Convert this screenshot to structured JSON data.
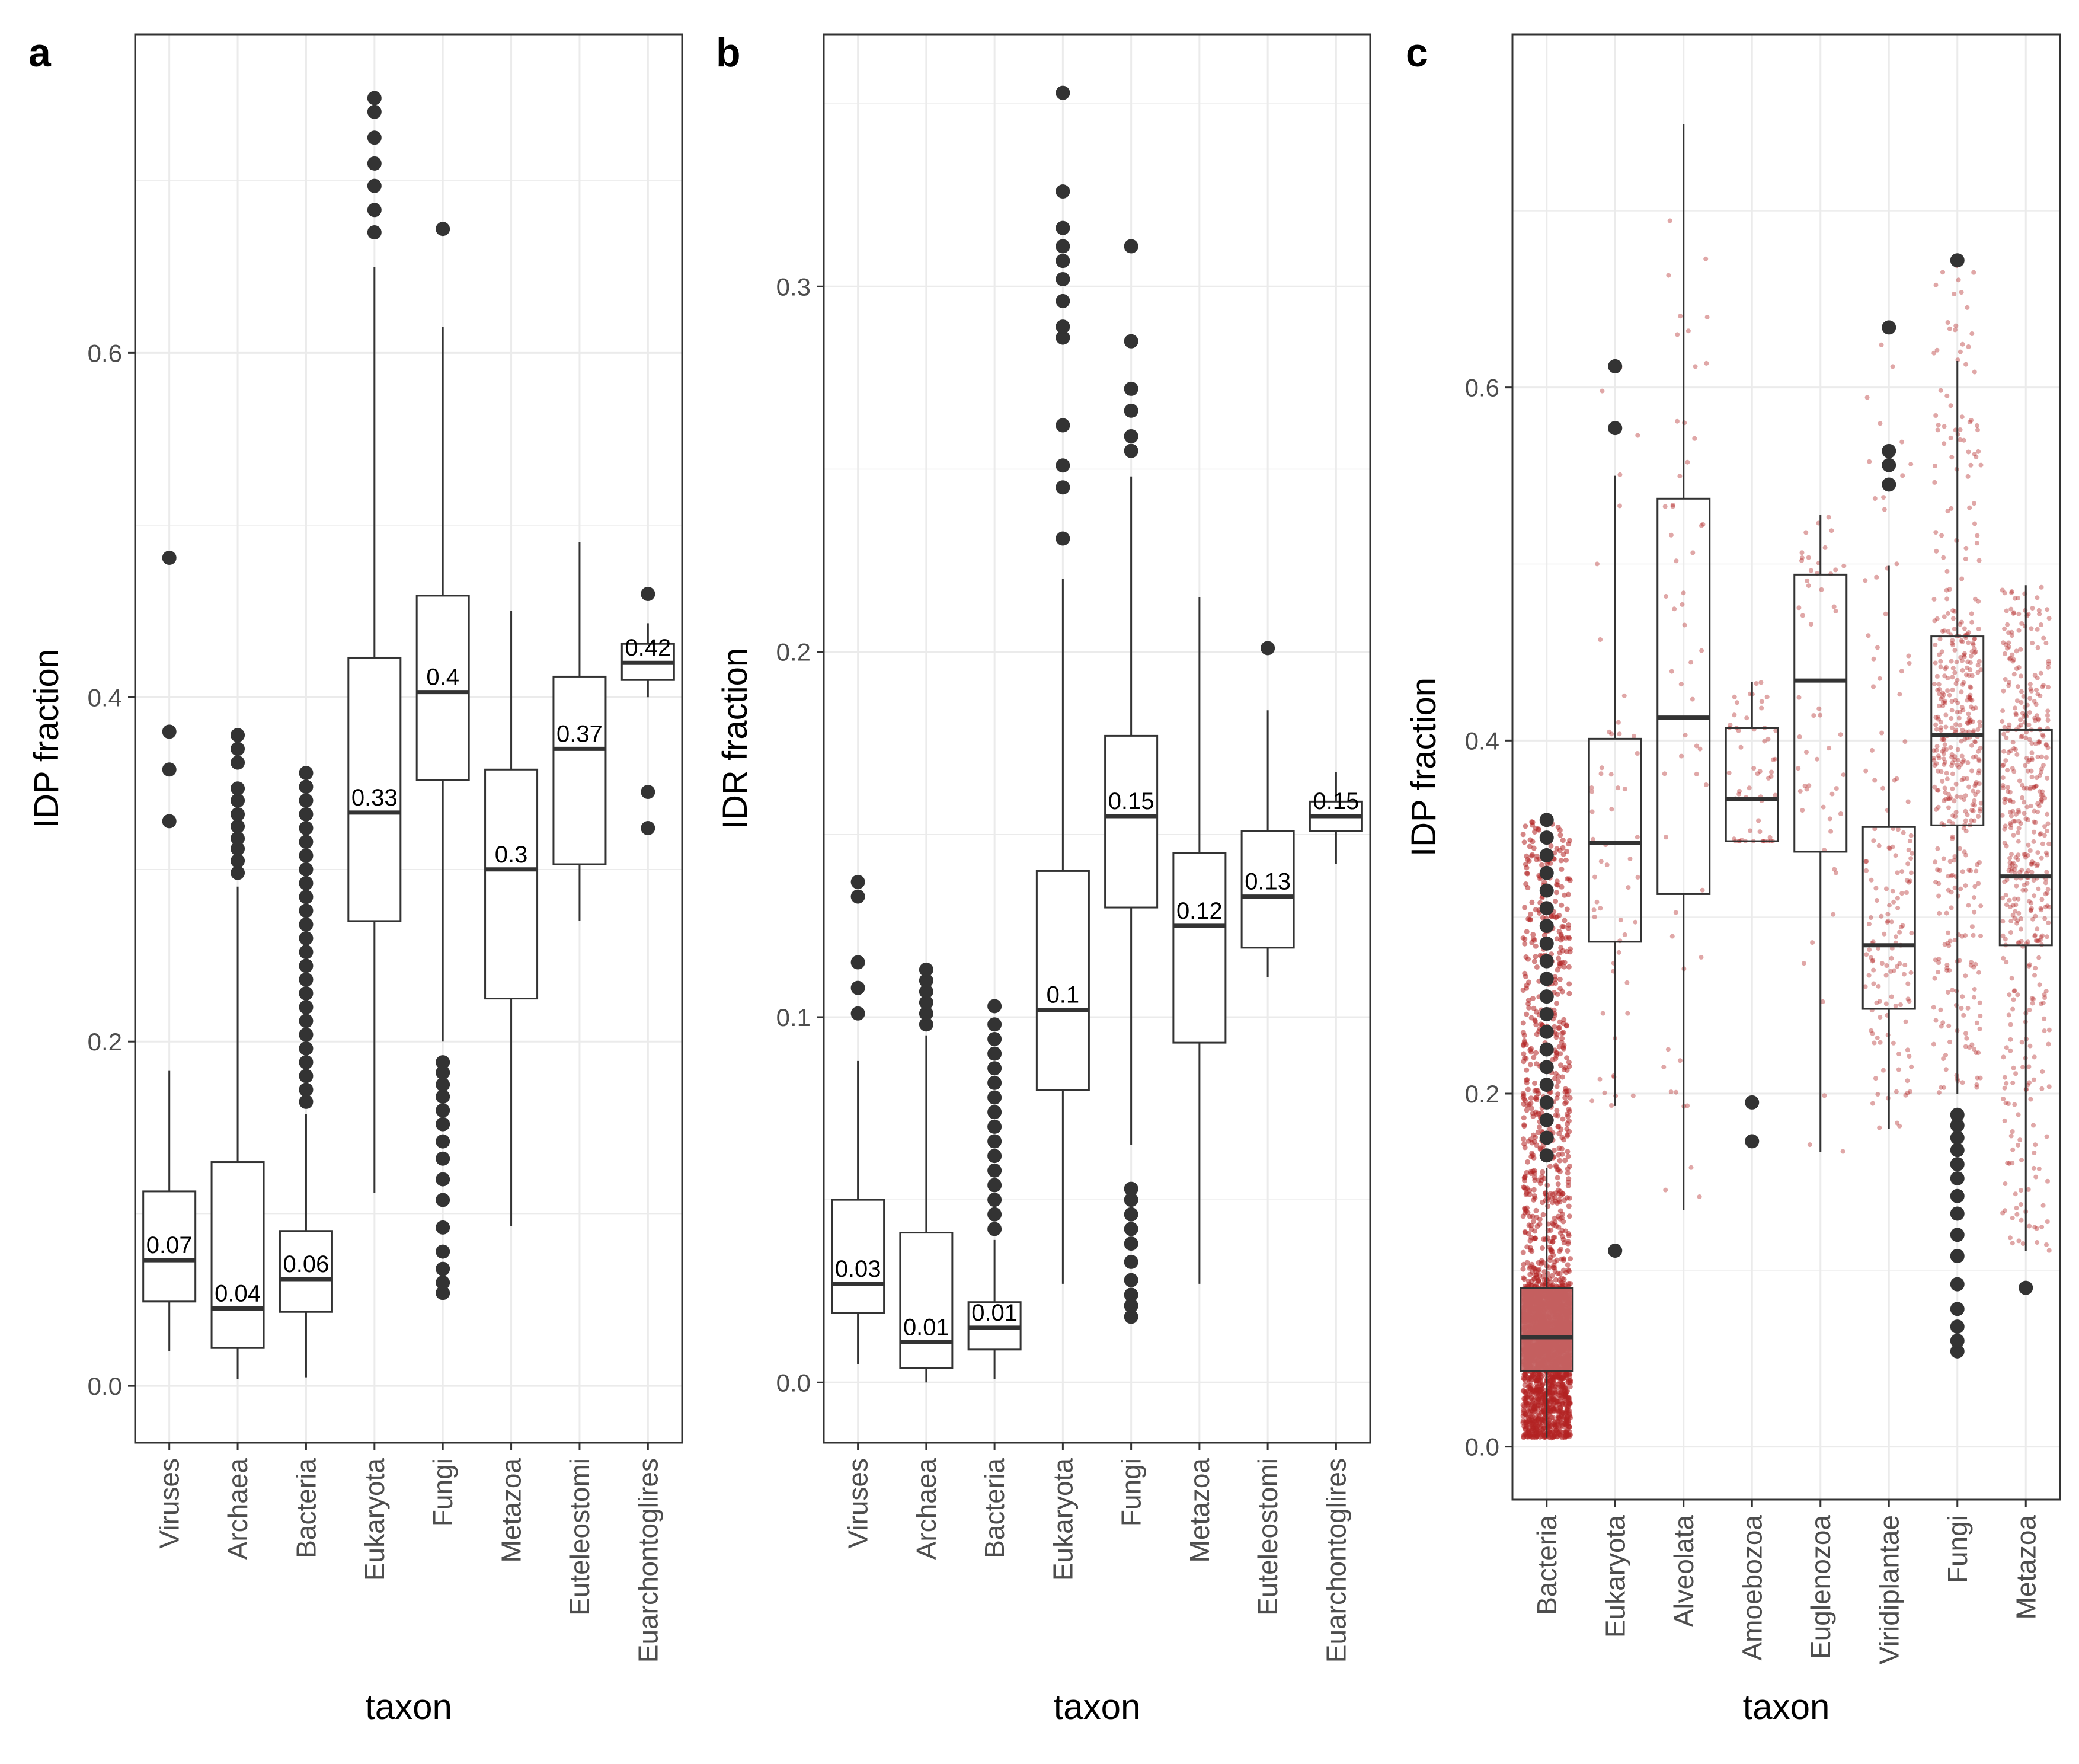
{
  "figure": {
    "panel_labels": [
      "a",
      "b",
      "c"
    ]
  },
  "colors": {
    "box_outline": "#333333",
    "outlier": "#333333",
    "grid": "#ebebeb",
    "panel_border": "#333333",
    "jitter": "#b22222",
    "bacteria_box_fill": "#c56666"
  },
  "chart_data": [
    {
      "type": "boxplot",
      "panel": "a",
      "xlabel": "taxon",
      "ylabel": "IDP fraction",
      "ylim": [
        -0.033,
        0.785
      ],
      "yticks": [
        0.0,
        0.2,
        0.4,
        0.6
      ],
      "ytick_labels": [
        "0.0",
        "0.2",
        "0.4",
        "0.6"
      ],
      "grid": true,
      "categories": [
        "Viruses",
        "Archaea",
        "Bacteria",
        "Eukaryota",
        "Fungi",
        "Metazoa",
        "Euteleostomi",
        "Euarchontoglires"
      ],
      "boxes": [
        {
          "q1": 0.049,
          "median": 0.073,
          "q3": 0.113,
          "lo": 0.02,
          "hi": 0.183,
          "label": "0.07",
          "outliers": [
            0.328,
            0.358,
            0.38,
            0.481
          ]
        },
        {
          "q1": 0.022,
          "median": 0.045,
          "q3": 0.13,
          "lo": 0.004,
          "hi": 0.29,
          "label": "0.04",
          "outliers": [
            0.298,
            0.305,
            0.312,
            0.318,
            0.325,
            0.332,
            0.34,
            0.347,
            0.362,
            0.37,
            0.378
          ]
        },
        {
          "q1": 0.043,
          "median": 0.062,
          "q3": 0.09,
          "lo": 0.005,
          "hi": 0.158,
          "label": "0.06",
          "outliers": [
            0.165,
            0.172,
            0.18,
            0.188,
            0.196,
            0.204,
            0.212,
            0.22,
            0.228,
            0.236,
            0.244,
            0.252,
            0.26,
            0.268,
            0.276,
            0.284,
            0.292,
            0.3,
            0.308,
            0.316,
            0.324,
            0.332,
            0.34,
            0.348,
            0.356
          ]
        },
        {
          "q1": 0.27,
          "median": 0.333,
          "q3": 0.423,
          "lo": 0.112,
          "hi": 0.65,
          "label": "0.33",
          "outliers": [
            0.67,
            0.683,
            0.697,
            0.71,
            0.725,
            0.74,
            0.748
          ]
        },
        {
          "q1": 0.352,
          "median": 0.403,
          "q3": 0.459,
          "lo": 0.2,
          "hi": 0.615,
          "label": "0.4",
          "outliers": [
            0.054,
            0.06,
            0.068,
            0.078,
            0.092,
            0.108,
            0.12,
            0.132,
            0.142,
            0.152,
            0.16,
            0.168,
            0.175,
            0.182,
            0.188,
            0.672
          ]
        },
        {
          "q1": 0.225,
          "median": 0.3,
          "q3": 0.358,
          "lo": 0.093,
          "hi": 0.45,
          "label": "0.3",
          "outliers": []
        },
        {
          "q1": 0.303,
          "median": 0.37,
          "q3": 0.412,
          "lo": 0.27,
          "hi": 0.49,
          "label": "0.37",
          "outliers": []
        },
        {
          "q1": 0.41,
          "median": 0.42,
          "q3": 0.431,
          "lo": 0.4,
          "hi": 0.443,
          "label": "0.42",
          "outliers": [
            0.324,
            0.345,
            0.46
          ]
        }
      ]
    },
    {
      "type": "boxplot",
      "panel": "b",
      "xlabel": "taxon",
      "ylabel": "IDR fraction",
      "ylim": [
        -0.0165,
        0.369
      ],
      "yticks": [
        0.0,
        0.1,
        0.2,
        0.3
      ],
      "ytick_labels": [
        "0.0",
        "0.1",
        "0.2",
        "0.3"
      ],
      "grid": true,
      "categories": [
        "Viruses",
        "Archaea",
        "Bacteria",
        "Eukaryota",
        "Fungi",
        "Metazoa",
        "Euteleostomi",
        "Euarchontoglires"
      ],
      "boxes": [
        {
          "q1": 0.019,
          "median": 0.027,
          "q3": 0.05,
          "lo": 0.005,
          "hi": 0.088,
          "label": "0.03",
          "outliers": [
            0.101,
            0.108,
            0.115,
            0.133,
            0.137
          ]
        },
        {
          "q1": 0.004,
          "median": 0.011,
          "q3": 0.041,
          "lo": 0.0,
          "hi": 0.095,
          "label": "0.01",
          "outliers": [
            0.098,
            0.101,
            0.104,
            0.107,
            0.11,
            0.113
          ]
        },
        {
          "q1": 0.009,
          "median": 0.015,
          "q3": 0.022,
          "lo": 0.001,
          "hi": 0.039,
          "label": "0.01",
          "outliers": [
            0.042,
            0.046,
            0.05,
            0.054,
            0.058,
            0.062,
            0.066,
            0.07,
            0.074,
            0.078,
            0.082,
            0.086,
            0.09,
            0.094,
            0.098,
            0.103
          ]
        },
        {
          "q1": 0.08,
          "median": 0.102,
          "q3": 0.14,
          "lo": 0.027,
          "hi": 0.22,
          "label": "0.1",
          "outliers": [
            0.231,
            0.245,
            0.251,
            0.262,
            0.286,
            0.289,
            0.296,
            0.302,
            0.307,
            0.311,
            0.316,
            0.326,
            0.353
          ]
        },
        {
          "q1": 0.13,
          "median": 0.155,
          "q3": 0.177,
          "lo": 0.065,
          "hi": 0.248,
          "label": "0.15",
          "outliers": [
            0.018,
            0.021,
            0.024,
            0.028,
            0.033,
            0.038,
            0.042,
            0.046,
            0.05,
            0.053,
            0.255,
            0.259,
            0.266,
            0.272,
            0.285,
            0.311
          ]
        },
        {
          "q1": 0.093,
          "median": 0.125,
          "q3": 0.145,
          "lo": 0.027,
          "hi": 0.215,
          "label": "0.12",
          "outliers": []
        },
        {
          "q1": 0.119,
          "median": 0.133,
          "q3": 0.151,
          "lo": 0.111,
          "hi": 0.184,
          "label": "0.13",
          "outliers": [
            0.201
          ]
        },
        {
          "q1": 0.151,
          "median": 0.155,
          "q3": 0.159,
          "lo": 0.142,
          "hi": 0.167,
          "label": "0.15",
          "outliers": []
        }
      ]
    },
    {
      "type": "boxplot",
      "panel": "c",
      "xlabel": "taxon",
      "ylabel": "IDP fraction",
      "ylim": [
        -0.03,
        0.8
      ],
      "yticks": [
        0.0,
        0.2,
        0.4,
        0.6
      ],
      "ytick_labels": [
        "0.0",
        "0.2",
        "0.4",
        "0.6"
      ],
      "grid": true,
      "jitter": true,
      "categories": [
        "Bacteria",
        "Eukaryota",
        "Alveolata",
        "Amoebozoa",
        "Euglenozoa",
        "Viridiplantae",
        "Fungi",
        "Metazoa"
      ],
      "boxes": [
        {
          "q1": 0.043,
          "median": 0.062,
          "q3": 0.09,
          "lo": 0.005,
          "hi": 0.158,
          "outliers": [
            0.165,
            0.175,
            0.185,
            0.195,
            0.205,
            0.215,
            0.225,
            0.235,
            0.245,
            0.255,
            0.265,
            0.275,
            0.285,
            0.295,
            0.305,
            0.315,
            0.325,
            0.335,
            0.345,
            0.355
          ],
          "filled": true
        },
        {
          "q1": 0.286,
          "median": 0.342,
          "q3": 0.401,
          "lo": 0.193,
          "hi": 0.55,
          "outliers": [
            0.111,
            0.577,
            0.612
          ]
        },
        {
          "q1": 0.313,
          "median": 0.413,
          "q3": 0.537,
          "lo": 0.134,
          "hi": 0.749,
          "outliers": []
        },
        {
          "q1": 0.343,
          "median": 0.367,
          "q3": 0.407,
          "lo": 0.343,
          "hi": 0.433,
          "outliers": [
            0.173,
            0.195
          ]
        },
        {
          "q1": 0.337,
          "median": 0.434,
          "q3": 0.494,
          "lo": 0.167,
          "hi": 0.528,
          "outliers": []
        },
        {
          "q1": 0.248,
          "median": 0.284,
          "q3": 0.351,
          "lo": 0.18,
          "hi": 0.499,
          "outliers": [
            0.545,
            0.556,
            0.564,
            0.634
          ]
        },
        {
          "q1": 0.352,
          "median": 0.403,
          "q3": 0.459,
          "lo": 0.2,
          "hi": 0.615,
          "outliers": [
            0.054,
            0.06,
            0.068,
            0.078,
            0.092,
            0.108,
            0.12,
            0.132,
            0.142,
            0.152,
            0.16,
            0.168,
            0.175,
            0.182,
            0.188,
            0.672
          ]
        },
        {
          "q1": 0.284,
          "median": 0.323,
          "q3": 0.406,
          "lo": 0.111,
          "hi": 0.488,
          "outliers": [
            0.09
          ]
        }
      ]
    }
  ]
}
